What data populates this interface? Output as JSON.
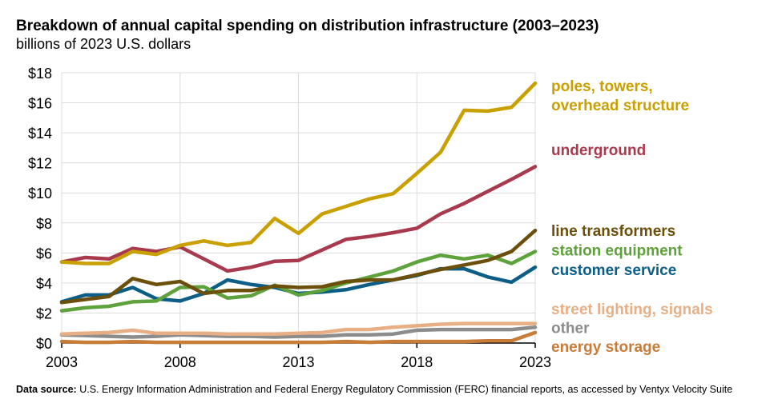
{
  "chart_data": {
    "type": "line",
    "title": "Breakdown of annual capital spending on distribution infrastructure (2003–2023)",
    "subtitle": "billions of 2023 U.S. dollars",
    "xlabel": "",
    "ylabel": "",
    "x": [
      2003,
      2004,
      2005,
      2006,
      2007,
      2008,
      2009,
      2010,
      2011,
      2012,
      2013,
      2014,
      2015,
      2016,
      2017,
      2018,
      2019,
      2020,
      2021,
      2022,
      2023
    ],
    "xticks": [
      "2003",
      "2008",
      "2013",
      "2018",
      "2023"
    ],
    "xtick_values": [
      2003,
      2008,
      2013,
      2018,
      2023
    ],
    "yticks": [
      "$0",
      "$2",
      "$4",
      "$6",
      "$8",
      "$10",
      "$12",
      "$14",
      "$16",
      "$18"
    ],
    "ytick_values": [
      0,
      2,
      4,
      6,
      8,
      10,
      12,
      14,
      16,
      18
    ],
    "ylim": [
      0,
      18
    ],
    "grid": true,
    "legend_placement": "right (direct labels)",
    "series": [
      {
        "name": "poles, towers,|overhead structure",
        "color": "#C9A000",
        "label_y": 16.5,
        "values": [
          5.4,
          5.3,
          5.3,
          6.1,
          5.9,
          6.5,
          6.8,
          6.5,
          6.7,
          8.3,
          7.3,
          8.6,
          9.1,
          9.6,
          9.95,
          11.3,
          12.7,
          15.5,
          15.45,
          15.7,
          17.3
        ]
      },
      {
        "name": "underground",
        "color": "#A93A4E",
        "label_y": 12.9,
        "values": [
          5.4,
          5.7,
          5.6,
          6.3,
          6.1,
          6.4,
          5.6,
          4.8,
          5.05,
          5.45,
          5.5,
          6.2,
          6.9,
          7.1,
          7.35,
          7.65,
          8.6,
          9.3,
          10.1,
          10.9,
          11.75
        ]
      },
      {
        "name": "line transformers",
        "color": "#6B4F0A",
        "label_y": 7.5,
        "values": [
          2.7,
          2.9,
          3.1,
          4.3,
          3.9,
          4.1,
          3.3,
          3.5,
          3.5,
          3.8,
          3.7,
          3.75,
          4.1,
          4.2,
          4.2,
          4.55,
          4.9,
          5.2,
          5.5,
          6.1,
          7.5
        ]
      },
      {
        "name": "station equipment",
        "color": "#5DA23A",
        "label_y": 6.2,
        "values": [
          2.15,
          2.35,
          2.45,
          2.75,
          2.8,
          3.7,
          3.75,
          3.0,
          3.15,
          3.85,
          3.2,
          3.5,
          4.0,
          4.4,
          4.8,
          5.4,
          5.85,
          5.6,
          5.85,
          5.3,
          6.1
        ]
      },
      {
        "name": "customer service",
        "color": "#0C5E86",
        "label_y": 4.9,
        "values": [
          2.75,
          3.2,
          3.2,
          3.7,
          2.95,
          2.8,
          3.3,
          4.2,
          3.9,
          3.7,
          3.3,
          3.4,
          3.55,
          3.9,
          4.2,
          4.5,
          4.95,
          4.95,
          4.4,
          4.05,
          5.05
        ]
      },
      {
        "name": "street lighting, signals",
        "color": "#E8AE84",
        "label_y": 2.3,
        "values": [
          0.6,
          0.65,
          0.7,
          0.85,
          0.65,
          0.65,
          0.65,
          0.6,
          0.6,
          0.6,
          0.65,
          0.7,
          0.9,
          0.9,
          1.05,
          1.15,
          1.25,
          1.3,
          1.3,
          1.3,
          1.3
        ]
      },
      {
        "name": "other",
        "color": "#8C8C8C",
        "label_y": 1.05,
        "values": [
          0.55,
          0.5,
          0.45,
          0.4,
          0.45,
          0.55,
          0.5,
          0.45,
          0.45,
          0.4,
          0.45,
          0.45,
          0.55,
          0.55,
          0.6,
          0.85,
          0.9,
          0.9,
          0.9,
          0.9,
          1.05
        ]
      },
      {
        "name": "energy storage",
        "color": "#C77C38",
        "label_y": -0.2,
        "values": [
          0.1,
          0.05,
          0.05,
          0.1,
          0.05,
          0.05,
          0.05,
          0.05,
          0.05,
          0.05,
          0.05,
          0.05,
          0.1,
          0.05,
          0.1,
          0.1,
          0.1,
          0.1,
          0.15,
          0.15,
          0.7
        ]
      }
    ]
  },
  "footer": {
    "source_label": "Data source:",
    "source_text": " U.S. Energy Information Administration and Federal Energy Regulatory Commission (FERC) financial reports, as accessed by Ventyx Velocity Suite"
  }
}
